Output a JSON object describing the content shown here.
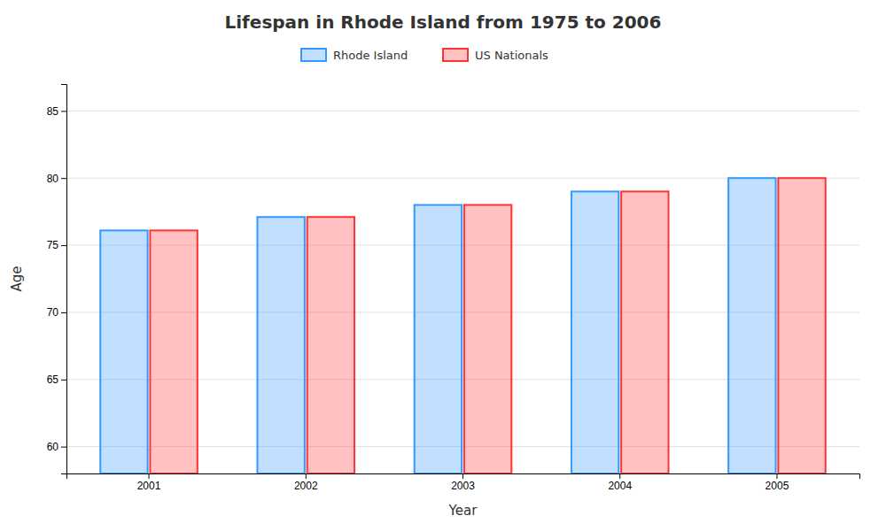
{
  "chart_data": {
    "type": "bar",
    "title": "Lifespan in Rhode Island from 1975 to 2006",
    "x_label": "Year",
    "y_label": "Age",
    "categories": [
      "2001",
      "2002",
      "2003",
      "2004",
      "2005"
    ],
    "series": [
      {
        "name": "Rhode Island",
        "color": "#3399ff",
        "values": [
          76.1,
          77.1,
          78.0,
          79.0,
          80.0
        ]
      },
      {
        "name": "US Nationals",
        "color": "#ff3333",
        "values": [
          76.1,
          77.1,
          78.0,
          79.0,
          80.0
        ]
      }
    ],
    "ylim": [
      58,
      87
    ],
    "yticks": [
      60,
      65,
      70,
      75,
      80,
      85
    ],
    "grid": true,
    "legend": "top"
  }
}
